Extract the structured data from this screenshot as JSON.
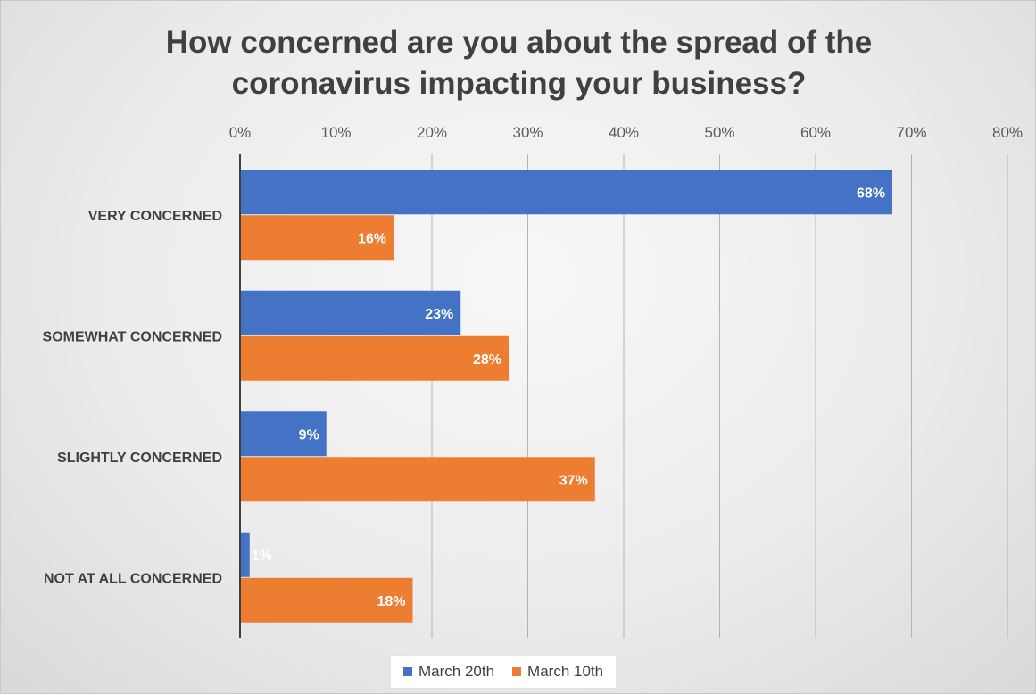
{
  "chart_data": {
    "type": "bar",
    "orientation": "horizontal",
    "title_lines": [
      "How concerned are you about the spread of the",
      "coronavirus impacting your business?"
    ],
    "categories": [
      "VERY CONCERNED",
      "SOMEWHAT CONCERNED",
      "SLIGHTLY CONCERNED",
      "NOT AT ALL CONCERNED"
    ],
    "series": [
      {
        "name": "March 20th",
        "color": "#4472c4",
        "values": [
          68,
          23,
          9,
          1
        ],
        "labels": [
          "68%",
          "23%",
          "9%",
          "1%"
        ]
      },
      {
        "name": "March 10th",
        "color": "#ed7d31",
        "values": [
          16,
          28,
          37,
          18
        ],
        "labels": [
          "16%",
          "28%",
          "37%",
          "18%"
        ]
      }
    ],
    "xlim": [
      0,
      80
    ],
    "x_ticks": [
      0,
      10,
      20,
      30,
      40,
      50,
      60,
      70,
      80
    ],
    "x_tick_labels": [
      "0%",
      "10%",
      "20%",
      "30%",
      "40%",
      "50%",
      "60%",
      "70%",
      "80%"
    ],
    "x_axis_position": "top",
    "grid": true,
    "legend_position": "bottom",
    "data_labels": "inside-end"
  }
}
